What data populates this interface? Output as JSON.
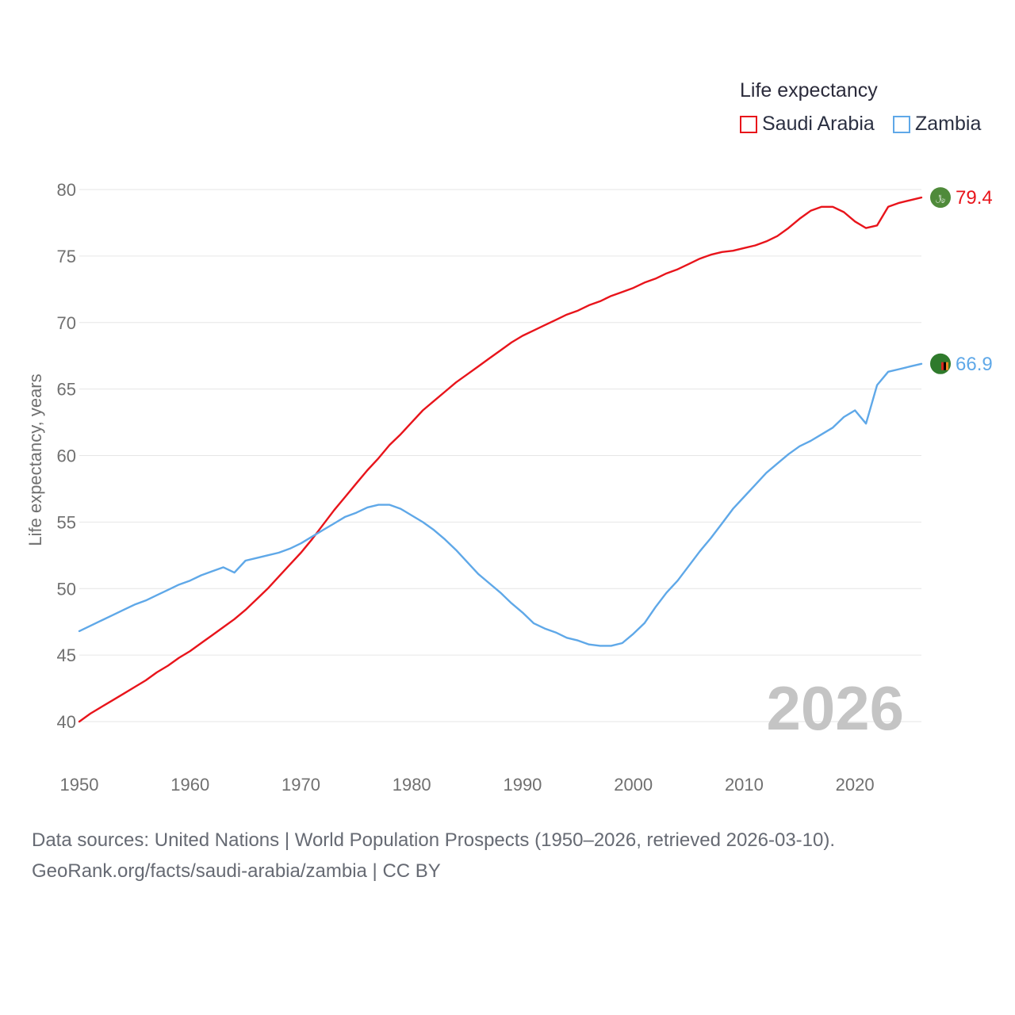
{
  "legend": {
    "title": "Life expectancy",
    "items": [
      {
        "label": "Saudi Arabia",
        "color": "#e8141b"
      },
      {
        "label": "Zambia",
        "color": "#5fa8e8"
      }
    ]
  },
  "footer": {
    "line1": "Data sources: United Nations | World Population Prospects (1950–2026, retrieved 2026-03-10).",
    "line2": "GeoRank.org/facts/saudi-arabia/zambia | CC BY"
  },
  "chart_data": {
    "type": "line",
    "title": "Life expectancy",
    "xlabel": "",
    "ylabel": "Life expectancy, years",
    "xlim": [
      1950,
      2026
    ],
    "ylim": [
      40,
      80
    ],
    "xticks": [
      "1950",
      "1960",
      "1970",
      "1980",
      "1990",
      "2000",
      "2010",
      "2020"
    ],
    "yticks": [
      "40",
      "45",
      "50",
      "55",
      "60",
      "65",
      "70",
      "75",
      "80"
    ],
    "grid": true,
    "year_label": "2026",
    "x_start": 1950,
    "series": [
      {
        "name": "Saudi Arabia",
        "color": "#e8141b",
        "icon": "saudi-arabia-flag-icon",
        "end_label": "79.4",
        "values": [
          40.0,
          40.6,
          41.1,
          41.6,
          42.1,
          42.6,
          43.1,
          43.7,
          44.2,
          44.8,
          45.3,
          45.9,
          46.5,
          47.1,
          47.7,
          48.4,
          49.2,
          50.0,
          50.9,
          51.8,
          52.7,
          53.7,
          54.8,
          55.9,
          56.9,
          57.9,
          58.9,
          59.8,
          60.8,
          61.6,
          62.5,
          63.4,
          64.1,
          64.8,
          65.5,
          66.1,
          66.7,
          67.3,
          67.9,
          68.5,
          69.0,
          69.4,
          69.8,
          70.2,
          70.6,
          70.9,
          71.3,
          71.6,
          72.0,
          72.3,
          72.6,
          73.0,
          73.3,
          73.7,
          74.0,
          74.4,
          74.8,
          75.1,
          75.3,
          75.4,
          75.6,
          75.8,
          76.1,
          76.5,
          77.1,
          77.8,
          78.4,
          78.7,
          78.7,
          78.3,
          77.6,
          77.1,
          77.3,
          78.7,
          79.0,
          79.2,
          79.4
        ]
      },
      {
        "name": "Zambia",
        "color": "#5fa8e8",
        "icon": "zambia-flag-icon",
        "end_label": "66.9",
        "values": [
          46.8,
          47.2,
          47.6,
          48.0,
          48.4,
          48.8,
          49.1,
          49.5,
          49.9,
          50.3,
          50.6,
          51.0,
          51.3,
          51.6,
          51.2,
          52.1,
          52.3,
          52.5,
          52.7,
          53.0,
          53.4,
          53.9,
          54.4,
          54.9,
          55.4,
          55.7,
          56.1,
          56.3,
          56.3,
          56.0,
          55.5,
          55.0,
          54.4,
          53.7,
          52.9,
          52.0,
          51.1,
          50.4,
          49.7,
          48.9,
          48.2,
          47.4,
          47.0,
          46.7,
          46.3,
          46.1,
          45.8,
          45.7,
          45.7,
          45.9,
          46.6,
          47.4,
          48.6,
          49.7,
          50.6,
          51.7,
          52.8,
          53.8,
          54.9,
          56.0,
          56.9,
          57.8,
          58.7,
          59.4,
          60.1,
          60.7,
          61.1,
          61.6,
          62.1,
          62.9,
          63.4,
          62.4,
          65.3,
          66.3,
          66.5,
          66.7,
          66.9
        ]
      }
    ]
  }
}
